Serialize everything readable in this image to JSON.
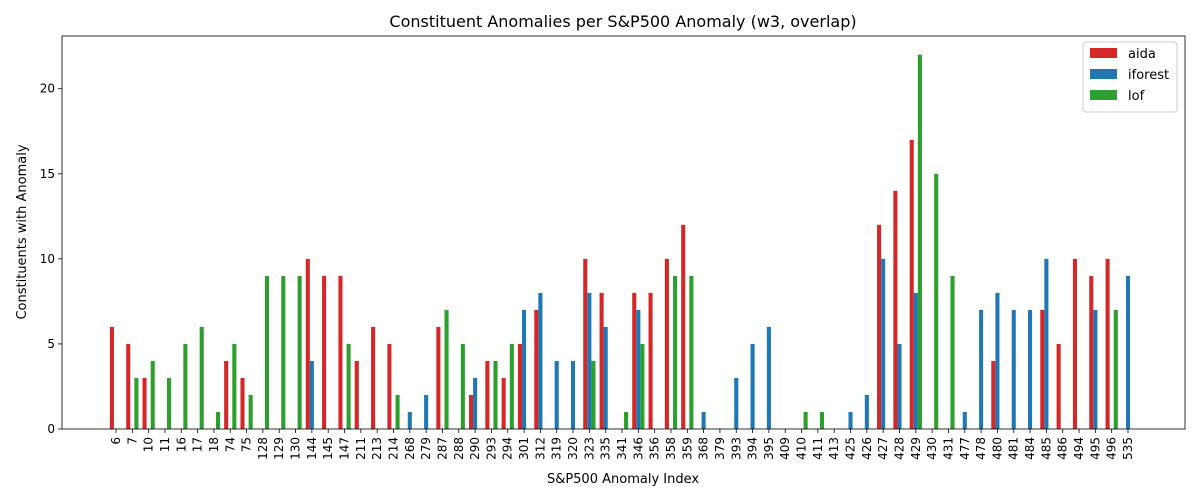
{
  "chart_data": {
    "type": "bar",
    "title": "Constituent Anomalies per S&P500 Anomaly (w3, overlap)",
    "xlabel": "S&P500 Anomaly Index",
    "ylabel": "Constituents with Anomaly",
    "ylim": [
      0,
      23.1
    ],
    "yticks": [
      0,
      5,
      10,
      15,
      20
    ],
    "grid": false,
    "legend_position": "top-right",
    "categories": [
      "6",
      "7",
      "10",
      "11",
      "16",
      "17",
      "18",
      "74",
      "75",
      "128",
      "129",
      "130",
      "144",
      "145",
      "147",
      "211",
      "213",
      "214",
      "268",
      "279",
      "287",
      "288",
      "290",
      "293",
      "294",
      "301",
      "312",
      "319",
      "320",
      "323",
      "335",
      "341",
      "346",
      "356",
      "358",
      "359",
      "368",
      "379",
      "393",
      "394",
      "395",
      "409",
      "410",
      "411",
      "413",
      "425",
      "426",
      "427",
      "428",
      "429",
      "430",
      "431",
      "477",
      "478",
      "480",
      "481",
      "484",
      "485",
      "486",
      "494",
      "495",
      "496",
      "535"
    ],
    "series": [
      {
        "name": "aida",
        "color": "#d62728",
        "values": [
          6,
          5,
          3,
          0,
          0,
          0,
          0,
          4,
          3,
          0,
          0,
          0,
          10,
          9,
          9,
          4,
          6,
          5,
          0,
          0,
          6,
          0,
          2,
          4,
          3,
          5,
          7,
          0,
          0,
          10,
          8,
          0,
          8,
          8,
          10,
          12,
          0,
          0,
          0,
          0,
          0,
          0,
          0,
          0,
          0,
          0,
          0,
          12,
          14,
          17,
          0,
          0,
          0,
          0,
          4,
          0,
          0,
          7,
          5,
          10,
          9,
          10,
          0
        ]
      },
      {
        "name": "iforest",
        "color": "#1f77b4",
        "values": [
          0,
          0,
          0,
          0,
          0,
          0,
          0,
          0,
          0,
          0,
          0,
          0,
          4,
          0,
          0,
          0,
          0,
          0,
          1,
          2,
          0,
          0,
          3,
          0,
          0,
          7,
          8,
          4,
          4,
          8,
          6,
          0,
          7,
          0,
          0,
          0,
          1,
          0,
          3,
          5,
          6,
          0,
          0,
          0,
          0,
          1,
          2,
          10,
          5,
          8,
          0,
          0,
          1,
          7,
          8,
          7,
          7,
          10,
          0,
          0,
          7,
          0,
          9
        ]
      },
      {
        "name": "lof",
        "color": "#2ca02c",
        "values": [
          0,
          3,
          4,
          3,
          5,
          6,
          1,
          5,
          2,
          9,
          9,
          9,
          0,
          0,
          5,
          0,
          0,
          2,
          0,
          0,
          7,
          5,
          0,
          4,
          5,
          0,
          0,
          0,
          0,
          4,
          0,
          1,
          5,
          0,
          9,
          9,
          0,
          0,
          0,
          0,
          0,
          0,
          1,
          1,
          0,
          0,
          0,
          0,
          0,
          22,
          15,
          9,
          0,
          0,
          0,
          0,
          0,
          0,
          0,
          0,
          0,
          7,
          0
        ]
      }
    ]
  }
}
